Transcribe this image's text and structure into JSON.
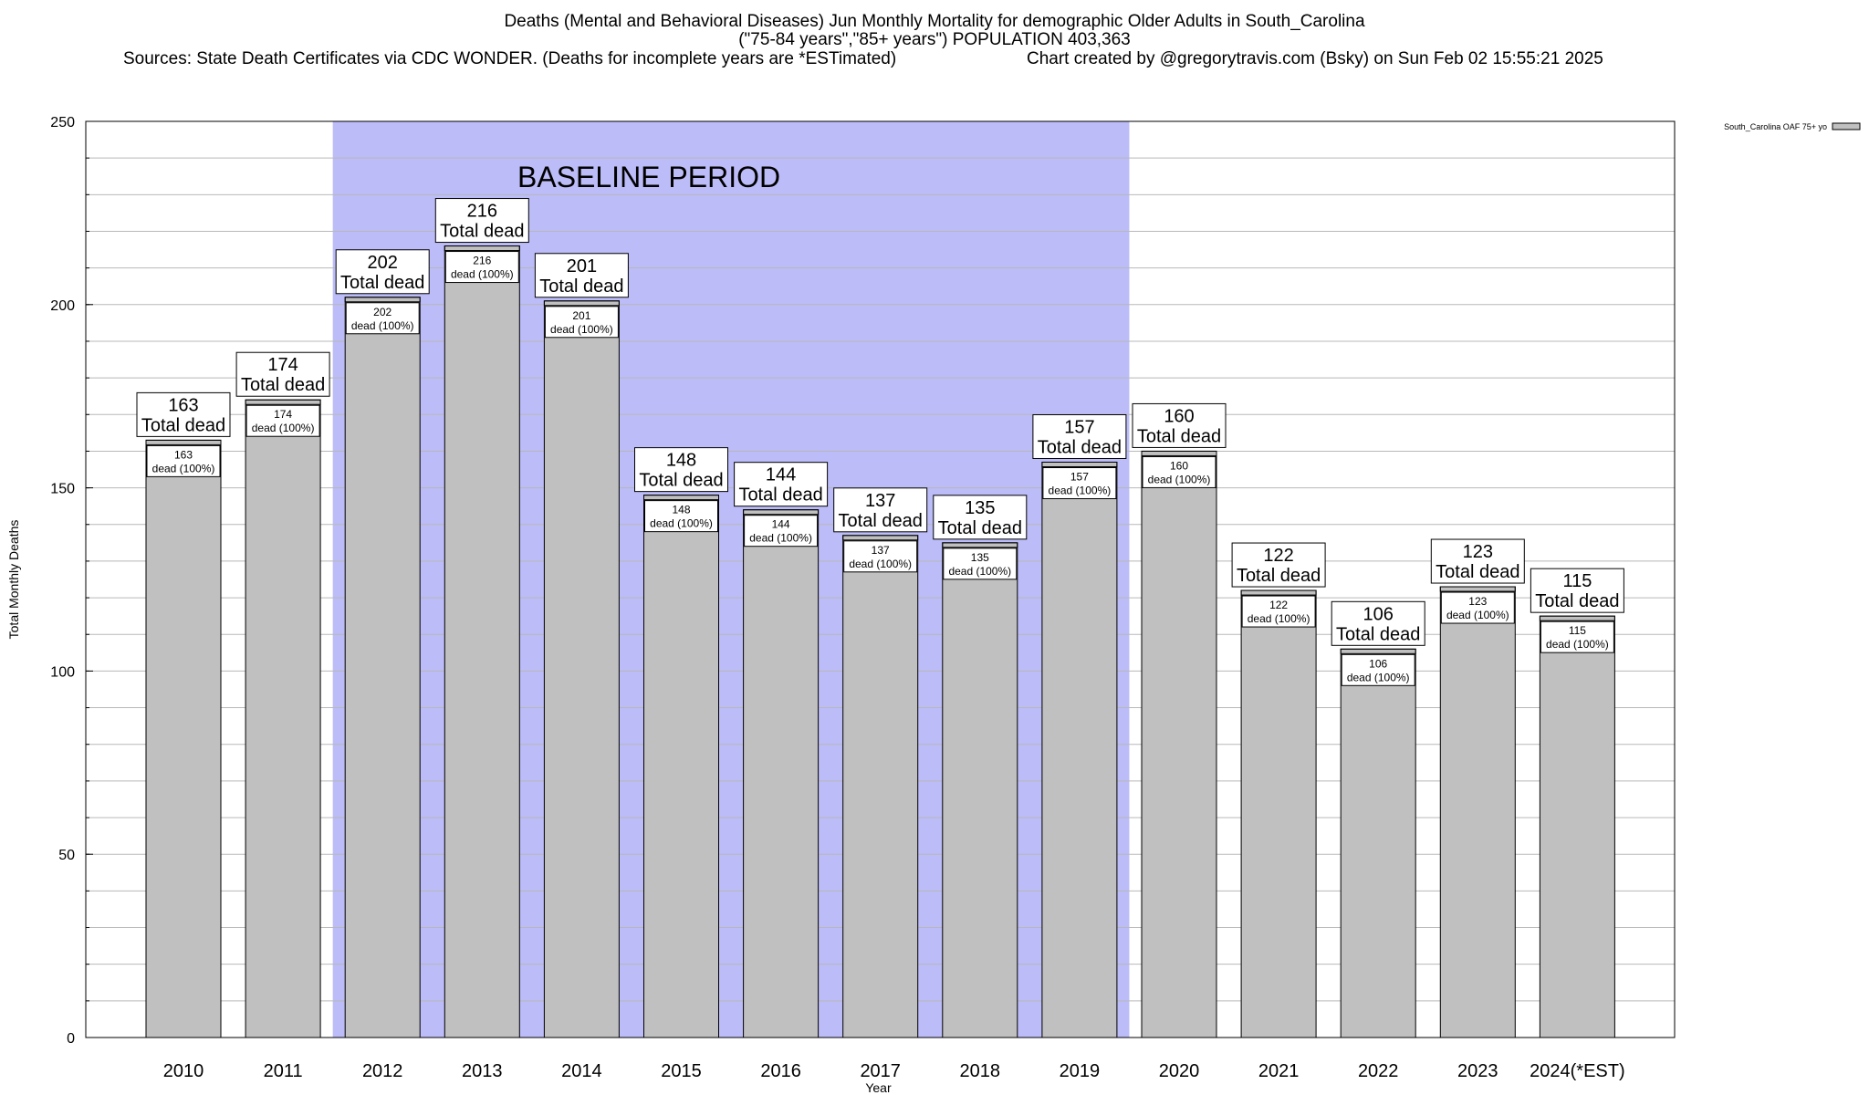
{
  "header": {
    "title_line1": "Deaths (Mental and Behavioral Diseases) Jun Monthly Mortality for demographic Older Adults in South_Carolina",
    "title_line2": "(\"75-84 years\",\"85+ years\") POPULATION 403,363",
    "sources": "Sources: State Death Certificates via CDC WONDER. (Deaths for incomplete years are *ESTimated)",
    "credit": "Chart created by @gregorytravis.com (Bsky) on Sun Feb 02 15:55:21 2025"
  },
  "chart_data": {
    "type": "bar",
    "categories": [
      "2010",
      "2011",
      "2012",
      "2013",
      "2014",
      "2015",
      "2016",
      "2017",
      "2018",
      "2019",
      "2020",
      "2021",
      "2022",
      "2023",
      "2024(*EST)"
    ],
    "series": [
      {
        "name": "South_Carolina OAF 75+ yo",
        "values": [
          163,
          174,
          202,
          216,
          201,
          148,
          144,
          137,
          135,
          157,
          160,
          122,
          106,
          123,
          115
        ]
      }
    ],
    "xlabel": "Year",
    "ylabel": "Total Monthly Deaths",
    "ylim": [
      0,
      250
    ],
    "yticks": [
      0,
      50,
      100,
      150,
      200,
      250
    ],
    "grid": true,
    "legend_position": "top-right",
    "bar_color": "#c0c0c0",
    "baseline_color": "#bcbcf8",
    "baseline_label": "BASELINE PERIOD",
    "baseline_range": [
      "2012",
      "2019"
    ],
    "total_label_suffix": "Total dead",
    "inner_label_suffix": "dead (100%)"
  }
}
